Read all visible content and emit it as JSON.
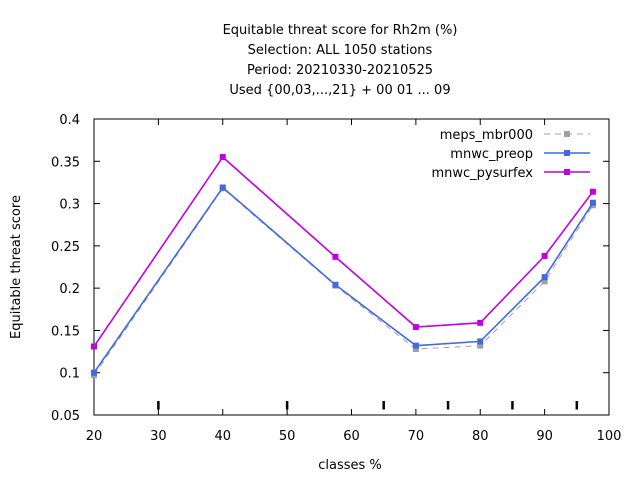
{
  "chart_data": {
    "type": "line",
    "title_lines": [
      "Equitable threat score  for Rh2m (%)",
      "Selection: ALL    1050 stations",
      "Period: 20210330-20210525",
      "Used {00,03,...,21} + 00 01 ... 09"
    ],
    "xlabel": "classes %",
    "ylabel": "Equitable threat score",
    "xlim": [
      20,
      100
    ],
    "ylim": [
      0.05,
      0.4
    ],
    "x_ticks": [
      20,
      30,
      40,
      50,
      60,
      70,
      80,
      90,
      100
    ],
    "x_tick_labels": [
      "20",
      "30",
      "40",
      "50",
      "60",
      "70",
      "80",
      "90",
      "100"
    ],
    "y_ticks": [
      0.05,
      0.1,
      0.15,
      0.2,
      0.25,
      0.3,
      0.35,
      0.4
    ],
    "y_tick_labels": [
      "0.05",
      "0.1",
      "0.15",
      "0.2",
      "0.25",
      "0.3",
      "0.35",
      "0.4"
    ],
    "class_marks": [
      30,
      50,
      65,
      75,
      85,
      95
    ],
    "legend_position": "top-right",
    "series": [
      {
        "name": "meps_mbr000",
        "color": "#a0a0a0",
        "dashed": true,
        "x": [
          20,
          40,
          57.5,
          70,
          80,
          90,
          97.5
        ],
        "y": [
          0.097,
          0.318,
          0.203,
          0.128,
          0.132,
          0.208,
          0.298
        ]
      },
      {
        "name": "mnwc_preop",
        "color": "#4169e1",
        "dashed": false,
        "x": [
          20,
          40,
          57.5,
          70,
          80,
          90,
          97.5
        ],
        "y": [
          0.1,
          0.319,
          0.204,
          0.132,
          0.137,
          0.213,
          0.301
        ]
      },
      {
        "name": "mnwc_pysurfex",
        "color": "#c000e0",
        "dashed": false,
        "x": [
          20,
          40,
          57.5,
          70,
          80,
          90,
          97.5
        ],
        "y": [
          0.131,
          0.355,
          0.237,
          0.154,
          0.159,
          0.238,
          0.314
        ]
      }
    ]
  }
}
